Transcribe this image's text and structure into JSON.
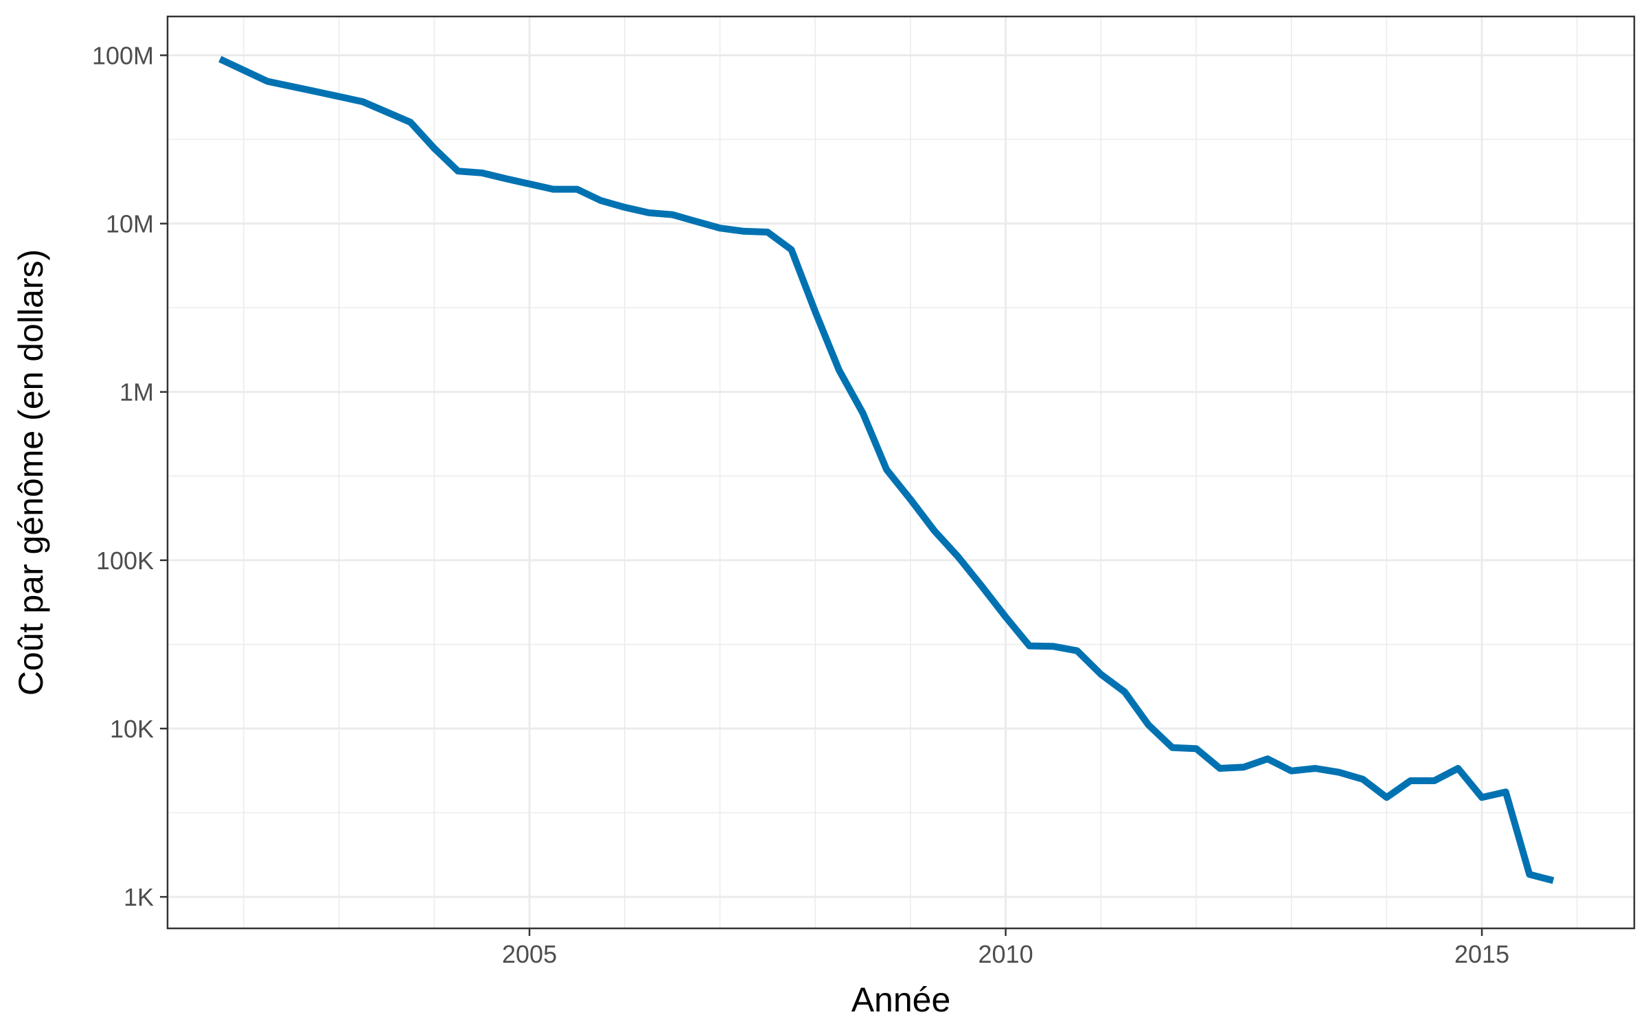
{
  "chart_data": {
    "type": "line",
    "title": "",
    "xlabel": "Année",
    "ylabel": "Coût par génôme (en dollars)",
    "y_scale": "log",
    "xlim": [
      2001.2,
      2016.6
    ],
    "ylim": [
      650,
      170000000
    ],
    "x_ticks": [
      2005,
      2010,
      2015
    ],
    "x_tick_labels": [
      "2005",
      "2010",
      "2015"
    ],
    "x_minor": [
      2002,
      2003,
      2004,
      2006,
      2007,
      2008,
      2009,
      2011,
      2012,
      2013,
      2014,
      2016
    ],
    "y_ticks": [
      1000,
      10000,
      100000,
      1000000,
      10000000,
      100000000
    ],
    "y_tick_labels": [
      "1K",
      "10K",
      "100K",
      "1M",
      "10M",
      "100M"
    ],
    "grid": true,
    "legend": "none",
    "line_color": "#0072B2",
    "series": [
      {
        "x": [
          2001.75,
          2002.25,
          2002.75,
          2003.25,
          2003.75,
          2004.0,
          2004.25,
          2004.5,
          2004.75,
          2005.0,
          2005.25,
          2005.5,
          2005.75,
          2006.0,
          2006.25,
          2006.5,
          2006.75,
          2007.0,
          2007.25,
          2007.5,
          2007.75,
          2008.0,
          2008.25,
          2008.5,
          2008.75,
          2009.0,
          2009.25,
          2009.5,
          2009.75,
          2010.0,
          2010.25,
          2010.5,
          2010.75,
          2011.0,
          2011.25,
          2011.5,
          2011.75,
          2012.0,
          2012.25,
          2012.5,
          2012.75,
          2013.0,
          2013.25,
          2013.5,
          2013.75,
          2014.0,
          2014.25,
          2014.5,
          2014.75,
          2015.0,
          2015.25,
          2015.5,
          2015.75
        ],
        "values": [
          95000000,
          70000000,
          61000000,
          53000000,
          40000000,
          28000000,
          20500000,
          20000000,
          18500000,
          17200000,
          16000000,
          16000000,
          13700000,
          12500000,
          11600000,
          11300000,
          10300000,
          9400000,
          9000000,
          8900000,
          7000000,
          3000000,
          1350000,
          750000,
          345000,
          230000,
          150000,
          105000,
          70000,
          46000,
          31000,
          30800,
          29000,
          21000,
          16500,
          10500,
          7700,
          7600,
          5800,
          5900,
          6600,
          5600,
          5800,
          5500,
          5000,
          3900,
          4900,
          4900,
          5800,
          3900,
          4200,
          1360,
          1250
        ]
      }
    ]
  }
}
